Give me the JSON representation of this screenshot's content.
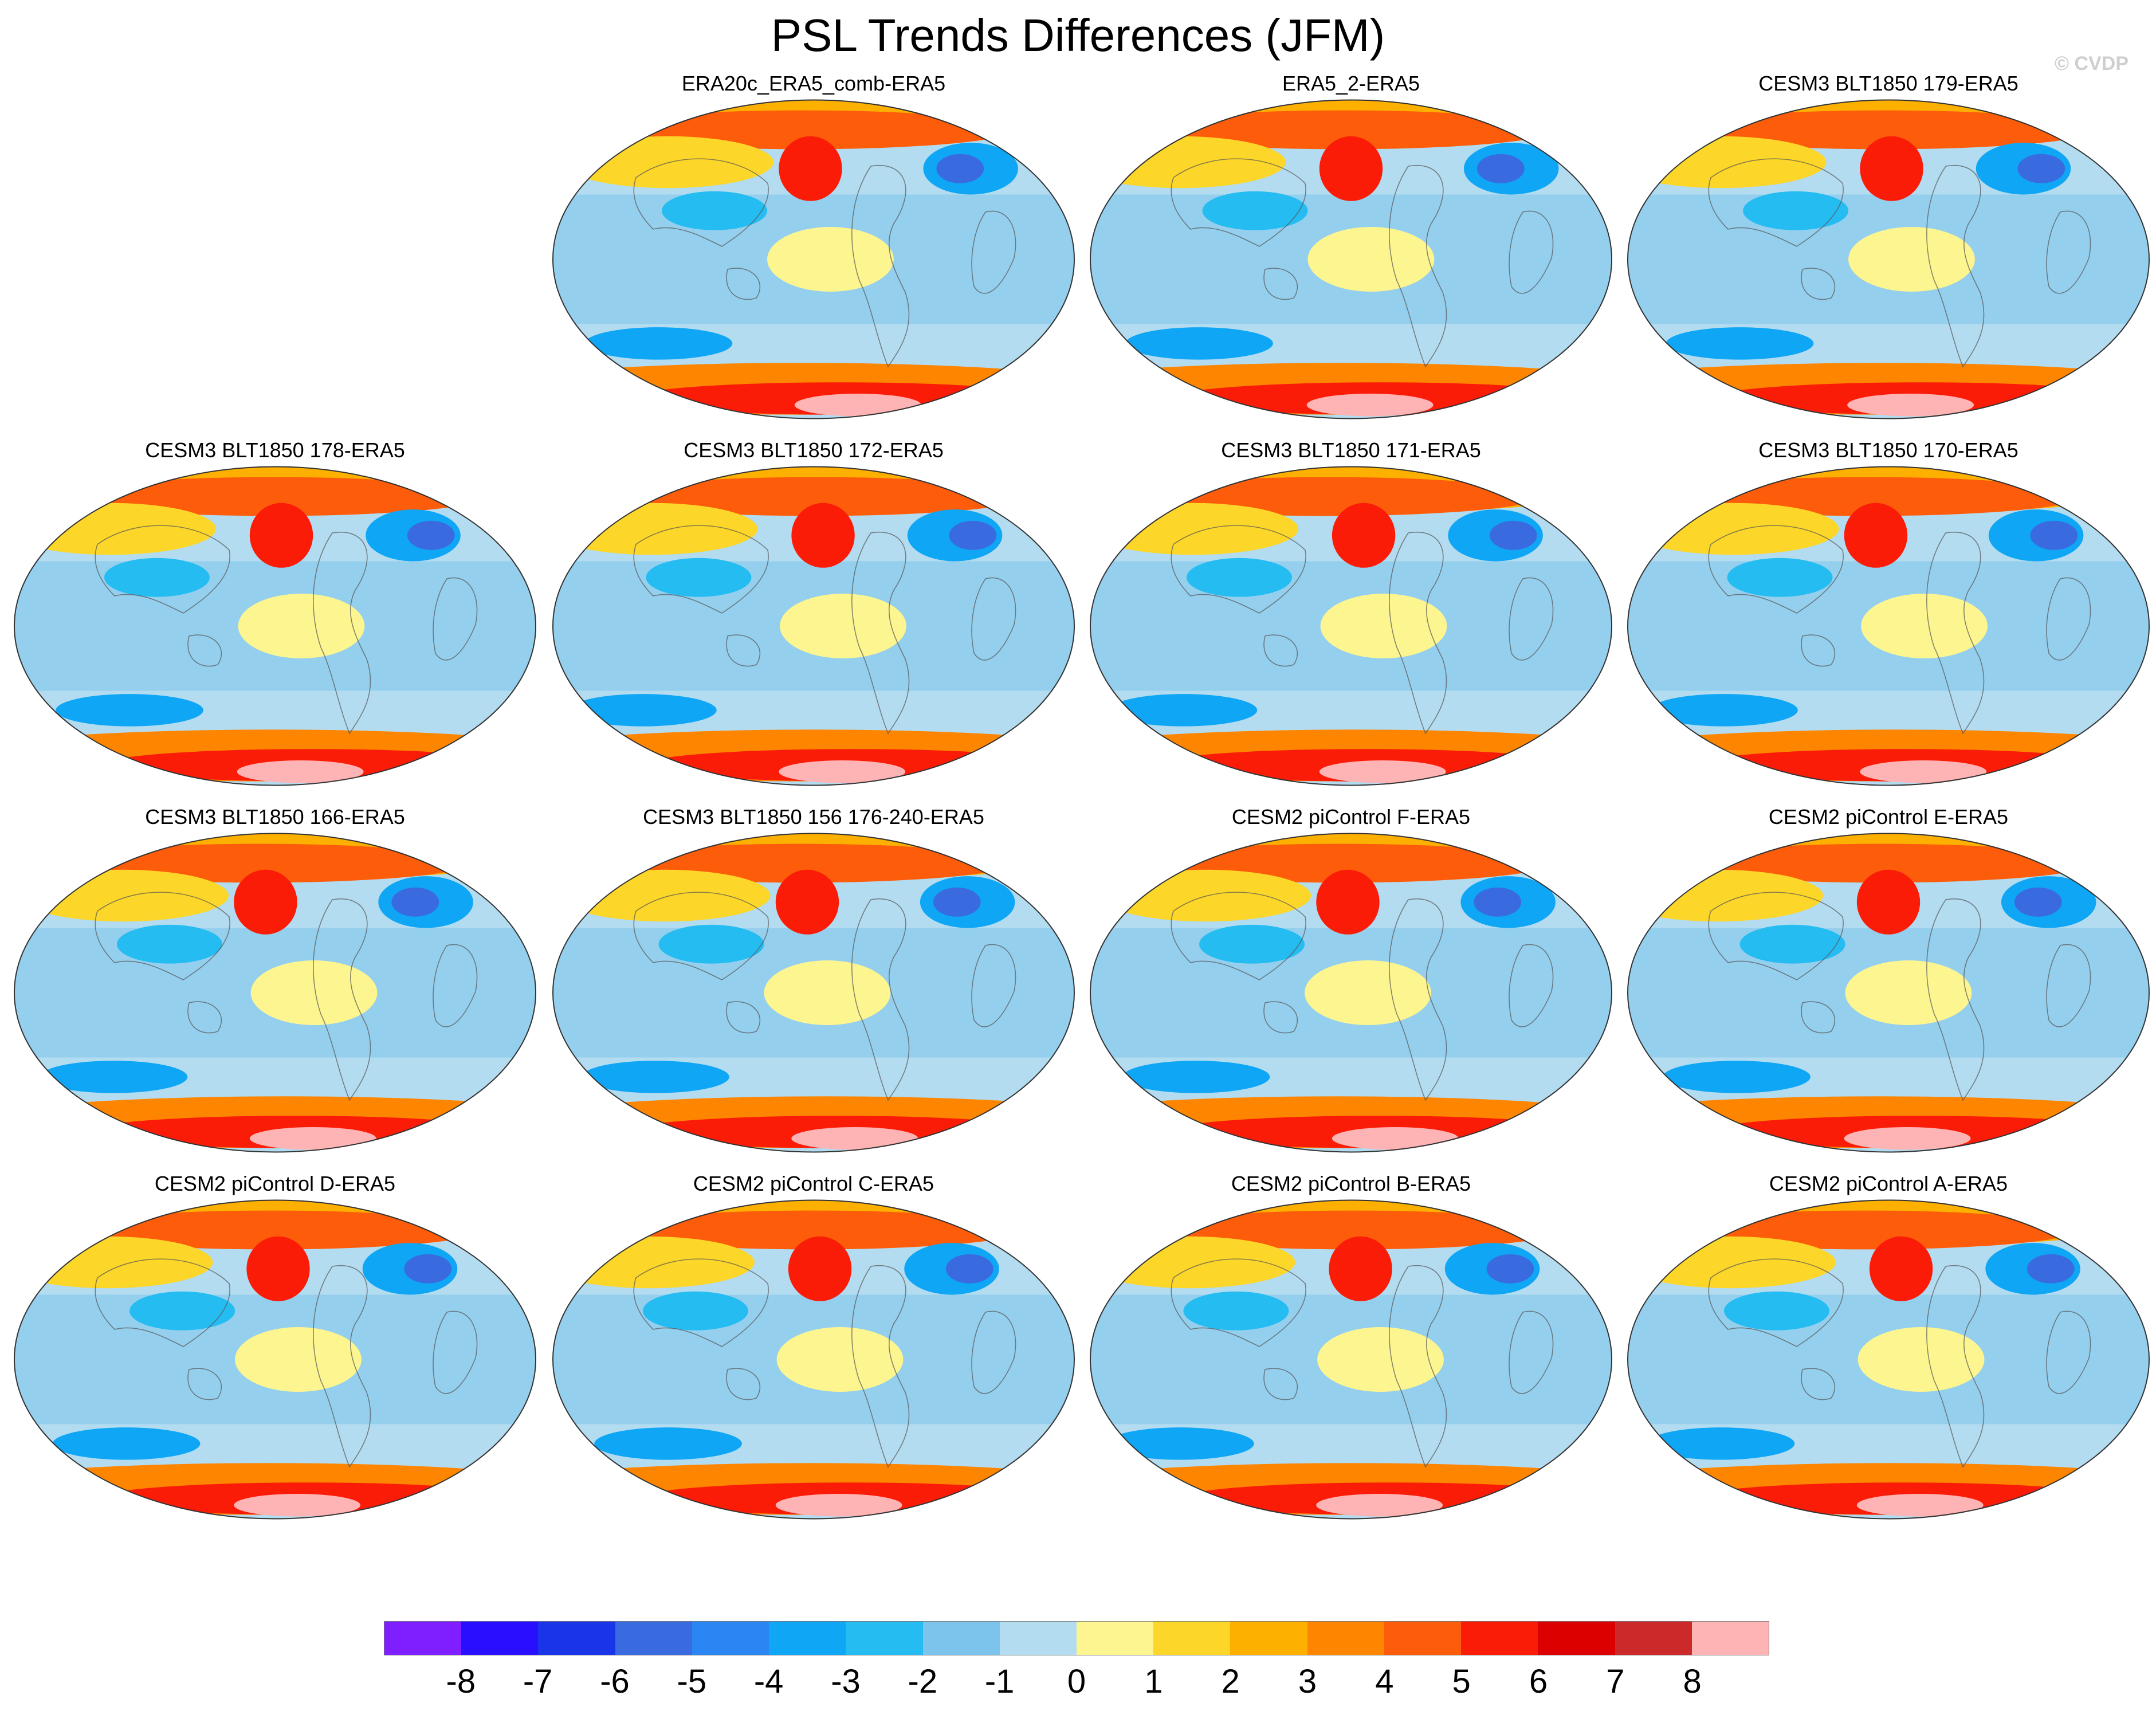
{
  "title": "PSL Trends Differences (JFM)",
  "credit": "© CVDP",
  "colorbar": {
    "colors": [
      "#7f1fff",
      "#2a0eff",
      "#1a35e8",
      "#3a6ae0",
      "#2b86f3",
      "#0ea6f5",
      "#25bcf2",
      "#7cc4ec",
      "#b3dcf0",
      "#fdf58f",
      "#fcd628",
      "#fdb000",
      "#fd8500",
      "#fd5c0a",
      "#fb1c08",
      "#dc0000",
      "#cc2a2a",
      "#feb3b4"
    ],
    "labels": [
      "-8",
      "-7",
      "-6",
      "-5",
      "-4",
      "-3",
      "-2",
      "-1",
      "0",
      "1",
      "2",
      "3",
      "4",
      "5",
      "6",
      "7",
      "8"
    ]
  },
  "panels": [
    {
      "title": "ERA20c_ERA5_comb-ERA5",
      "row": 0,
      "col": 1
    },
    {
      "title": "ERA5_2-ERA5",
      "row": 0,
      "col": 2
    },
    {
      "title": "CESM3 BLT1850 179-ERA5",
      "row": 0,
      "col": 3
    },
    {
      "title": "CESM3 BLT1850 178-ERA5",
      "row": 1,
      "col": 0
    },
    {
      "title": "CESM3 BLT1850 172-ERA5",
      "row": 1,
      "col": 1
    },
    {
      "title": "CESM3 BLT1850 171-ERA5",
      "row": 1,
      "col": 2
    },
    {
      "title": "CESM3 BLT1850 170-ERA5",
      "row": 1,
      "col": 3
    },
    {
      "title": "CESM3 BLT1850 166-ERA5",
      "row": 2,
      "col": 0
    },
    {
      "title": "CESM3 BLT1850 156 176-240-ERA5",
      "row": 2,
      "col": 1
    },
    {
      "title": "CESM2 piControl F-ERA5",
      "row": 2,
      "col": 2
    },
    {
      "title": "CESM2 piControl E-ERA5",
      "row": 2,
      "col": 3
    },
    {
      "title": "CESM2 piControl D-ERA5",
      "row": 3,
      "col": 0
    },
    {
      "title": "CESM2 piControl C-ERA5",
      "row": 3,
      "col": 1
    },
    {
      "title": "CESM2 piControl B-ERA5",
      "row": 3,
      "col": 2
    },
    {
      "title": "CESM2 piControl A-ERA5",
      "row": 3,
      "col": 3
    }
  ]
}
